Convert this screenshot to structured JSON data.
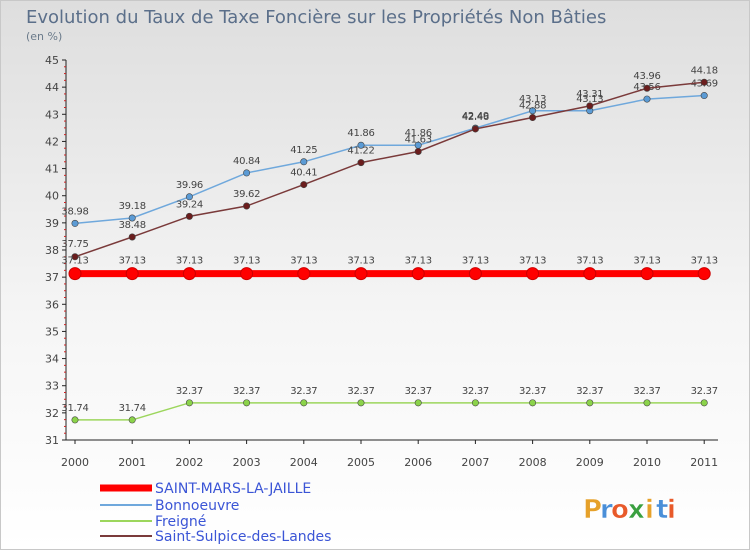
{
  "chart_data": {
    "type": "line",
    "title": "Evolution du Taux de Taxe Foncière sur les Propriétés Non Bâties",
    "subtitle": "(en %)",
    "x": [
      "2000",
      "2001",
      "2002",
      "2003",
      "2004",
      "2005",
      "2006",
      "2007",
      "2008",
      "2009",
      "2010",
      "2011"
    ],
    "ylim": [
      31,
      45
    ],
    "yticks": [
      31,
      32,
      33,
      34,
      35,
      36,
      37,
      38,
      39,
      40,
      41,
      42,
      43,
      44,
      45
    ],
    "grid": false,
    "legend_position": "bottom-left",
    "series": [
      {
        "name": "SAINT-MARS-LA-JAILLE",
        "color": "#ff0000",
        "values": [
          37.13,
          37.13,
          37.13,
          37.13,
          37.13,
          37.13,
          37.13,
          37.13,
          37.13,
          37.13,
          37.13,
          37.13
        ],
        "labels": [
          "37.13",
          "37.13",
          "37.13",
          "37.13",
          "37.13",
          "37.13",
          "37.13",
          "37.13",
          "37.13",
          "37.13",
          "37.13",
          "37.13"
        ]
      },
      {
        "name": "Bonnoeuvre",
        "color": "#6fa8dc",
        "marker_color": "#5b9bd5",
        "values": [
          38.98,
          39.18,
          39.96,
          40.84,
          41.25,
          41.86,
          41.86,
          42.49,
          43.13,
          43.13,
          43.56,
          43.69
        ],
        "labels": [
          "38.98",
          "39.18",
          "39.96",
          "40.84",
          "41.25",
          "41.86",
          "41.86",
          "42.49",
          "43.13",
          "43.13",
          "43.56",
          "43.69"
        ]
      },
      {
        "name": "Freigné",
        "color": "#9cd65c",
        "marker_color": "#8bd34a",
        "values": [
          31.74,
          31.74,
          32.37,
          32.37,
          32.37,
          32.37,
          32.37,
          32.37,
          32.37,
          32.37,
          32.37,
          32.37
        ],
        "labels": [
          "31.74",
          "31.74",
          "32.37",
          "32.37",
          "32.37",
          "32.37",
          "32.37",
          "32.37",
          "32.37",
          "32.37",
          "32.37",
          "32.37"
        ]
      },
      {
        "name": "Saint-Sulpice-des-Landes",
        "color": "#7a3a3a",
        "marker_color": "#6b1d1d",
        "values": [
          37.75,
          38.48,
          39.24,
          39.62,
          40.41,
          41.22,
          41.63,
          42.46,
          42.88,
          43.31,
          43.96,
          44.18
        ],
        "labels": [
          "37.75",
          "38.48",
          "39.24",
          "39.62",
          "40.41",
          "41.22",
          "41.63",
          "42.46",
          "42.88",
          "43.31",
          "43.96",
          "44.18"
        ]
      }
    ]
  },
  "logo": {
    "letters": [
      "P",
      "r",
      "o",
      "x",
      "i",
      "t",
      "i"
    ],
    "colors": [
      "#e6a12a",
      "#4a8fd8",
      "#e85a2a",
      "#3aa040",
      "#e6a12a",
      "#4a8fd8",
      "#e85a2a"
    ]
  }
}
